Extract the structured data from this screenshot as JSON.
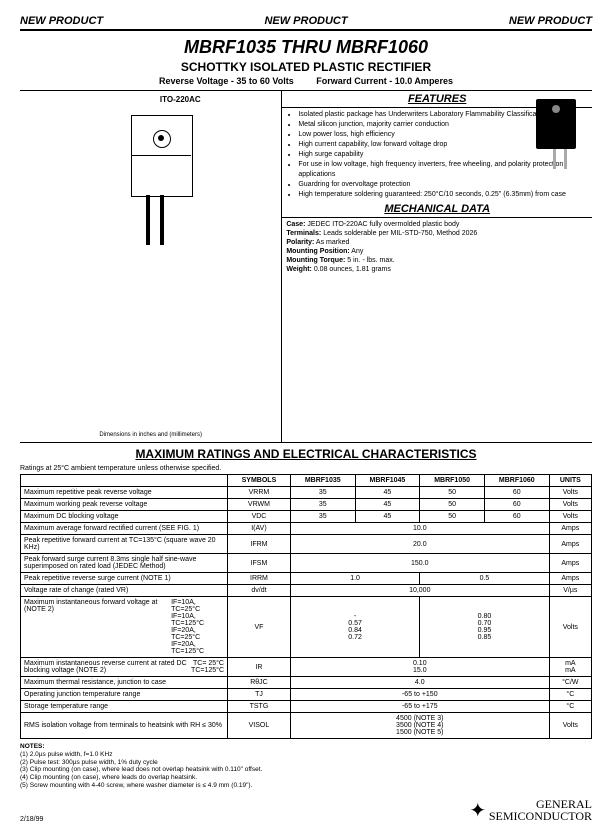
{
  "banner": {
    "text": "NEW PRODUCT"
  },
  "title": {
    "main": "MBRF1035 THRU MBRF1060",
    "sub": "SCHOTTKY ISOLATED PLASTIC RECTIFIER",
    "reverse": "Reverse Voltage - 35 to 60 Volts",
    "forward": "Forward Current - 10.0 Amperes"
  },
  "package": {
    "label": "ITO-220AC",
    "dim_note": "Dimensions in inches and (millimeters)"
  },
  "features": {
    "header": "FEATURES",
    "items": [
      "Isolated plastic package has Underwriters Laboratory Flammability Classifications 94V-0",
      "Metal silicon junction, majority carrier conduction",
      "Low power loss, high efficiency",
      "High current capability, low forward voltage drop",
      "High surge capability",
      "For use in low voltage, high frequency inverters, free wheeling, and polarity protection applications",
      "Guardring for overvoltage protection",
      "High temperature soldering guaranteed: 250°C/10 seconds, 0.25\" (6.35mm) from case"
    ]
  },
  "mechanical": {
    "header": "MECHANICAL DATA",
    "case": "JEDEC ITO-220AC fully overmolded plastic body",
    "terminals": "Leads solderable per MIL-STD-750, Method 2026",
    "polarity": "As marked",
    "mounting_pos": "Any",
    "mounting_torque": "5 in. - lbs. max.",
    "weight": "0.08 ounces, 1.81 grams"
  },
  "ratings": {
    "header": "MAXIMUM RATINGS AND ELECTRICAL CHARACTERISTICS",
    "note": "Ratings at 25°C ambient temperature unless otherwise specified.",
    "columns": [
      "SYMBOLS",
      "MBRF1035",
      "MBRF1045",
      "MBRF1050",
      "MBRF1060",
      "UNITS"
    ],
    "rows": [
      {
        "param": "Maximum repetitive peak reverse voltage",
        "sym": "VRRM",
        "vals": [
          "35",
          "45",
          "50",
          "60"
        ],
        "unit": "Volts"
      },
      {
        "param": "Maximum working peak reverse voltage",
        "sym": "VRWM",
        "vals": [
          "35",
          "45",
          "50",
          "60"
        ],
        "unit": "Volts"
      },
      {
        "param": "Maximum DC blocking voltage",
        "sym": "VDC",
        "vals": [
          "35",
          "45",
          "50",
          "60"
        ],
        "unit": "Volts"
      },
      {
        "param": "Maximum average forward rectified current (SEE FIG. 1)",
        "sym": "I(AV)",
        "span": "10.0",
        "unit": "Amps"
      },
      {
        "param": "Peak repetitive forward current at TC=135°C (square wave 20 KHz)",
        "sym": "IFRM",
        "span": "20.0",
        "unit": "Amps"
      },
      {
        "param": "Peak forward surge current 8.3ms single half sine-wave superimposed on rated load (JEDEC Method)",
        "sym": "IFSM",
        "span": "150.0",
        "unit": "Amps"
      },
      {
        "param": "Peak repetitive reverse surge current (NOTE 1)",
        "sym": "IRRM",
        "vals2": [
          "1.0",
          "0.5"
        ],
        "unit": "Amps"
      },
      {
        "param": "Voltage rate of change (rated VR)",
        "sym": "dv/dt",
        "span": "10,000",
        "unit": "V/µs"
      },
      {
        "param": "Maximum instantaneous forward voltage at (NOTE 2)",
        "cond": "IF=10A, TC=25°C\nIF=10A, TC=125°C\nIF=20A, TC=25°C\nIF=20A, TC=125°C",
        "sym": "VF",
        "vals2": [
          "-\n0.57\n0.84\n0.72",
          "0.80\n0.70\n0.95\n0.85"
        ],
        "unit": "Volts"
      },
      {
        "param": "Maximum instantaneous reverse current at rated DC blocking voltage (NOTE 2)",
        "cond2": "TC= 25°C\nTC=125°C",
        "sym": "IR",
        "span": "0.10\n15.0",
        "unit": "mA\nmA"
      },
      {
        "param": "Maximum thermal resistance, junction to case",
        "sym": "RθJC",
        "span": "4.0",
        "unit": "°C/W"
      },
      {
        "param": "Operating junction temperature range",
        "sym": "TJ",
        "span": "-65 to +150",
        "unit": "°C"
      },
      {
        "param": "Storage temperature range",
        "sym": "TSTG",
        "span": "-65 to +175",
        "unit": "°C"
      },
      {
        "param": "RMS isolation voltage from terminals to heatsink with RH ≤ 30%",
        "sym": "VISOL",
        "span": "4500 (NOTE 3)\n3500 (NOTE 4)\n1500 (NOTE 5)",
        "unit": "Volts"
      }
    ]
  },
  "notes": {
    "header": "NOTES:",
    "items": [
      "(1) 2.0µs pulse width, f=1.0 KHz",
      "(2) Pulse test: 300µs pulse width, 1% duty cycle",
      "(3) Clip mounting (on case), where lead does not overlap heatsink with 0.110\" offset.",
      "(4) Clip mounting (on case), where leads do overlap heatsink.",
      "(5) Screw mounting with 4-40 screw, where washer diameter is ≤ 4.9 mm (0.19\")."
    ]
  },
  "footer": {
    "date": "2/18/99",
    "company1": "GENERAL",
    "company2": "SEMICONDUCTOR"
  }
}
